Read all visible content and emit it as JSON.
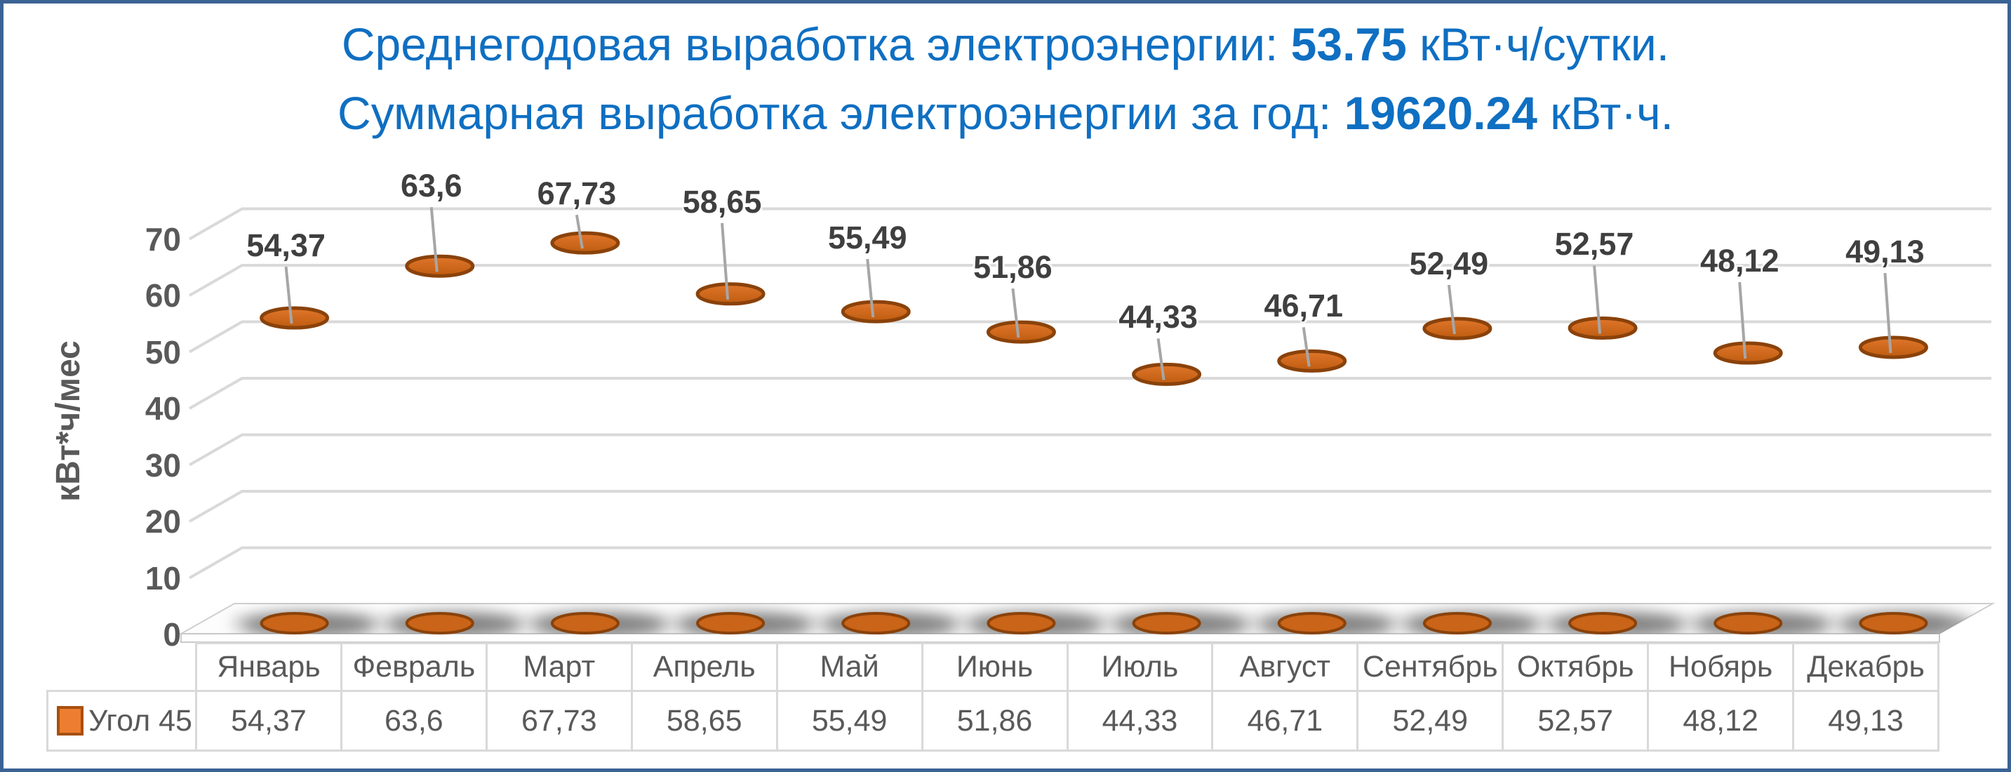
{
  "title": {
    "line1_prefix": "Среднегодовая выработка электроэнергии: ",
    "line1_value": "53.75",
    "line1_suffix": " кВт·ч/сутки.",
    "line2_prefix": "Суммарная выработка электроэнергии за год: ",
    "line2_value": "19620.24",
    "line2_suffix": " кВт·ч."
  },
  "chart_data": {
    "type": "bar",
    "subtype": "3d-cylinder",
    "categories": [
      "Январь",
      "Февраль",
      "Март",
      "Апрель",
      "Май",
      "Июнь",
      "Июль",
      "Август",
      "Сентябрь",
      "Октябрь",
      "Нобярь",
      "Декабрь"
    ],
    "series": [
      {
        "name": "Угол 45",
        "values": [
          54.37,
          63.6,
          67.73,
          58.65,
          55.49,
          51.86,
          44.33,
          46.71,
          52.49,
          52.57,
          48.12,
          49.13
        ]
      }
    ],
    "value_labels": [
      "54,37",
      "63,6",
      "67,73",
      "58,65",
      "55,49",
      "51,86",
      "44,33",
      "46,71",
      "52,49",
      "52,57",
      "48,12",
      "49,13"
    ],
    "table_values": [
      "54,37",
      "63,6",
      "67,73",
      "58,65",
      "55,49",
      "51,86",
      "44,33",
      "46,71",
      "52,49",
      "52,57",
      "48,12",
      "49,13"
    ],
    "ylabel": "кВт*ч/мес",
    "yticks": [
      "0",
      "10",
      "20",
      "30",
      "40",
      "50",
      "60",
      "70"
    ],
    "ylim": [
      0,
      70
    ],
    "grid": true,
    "legend_position": "table-row-left",
    "data_table": true
  },
  "colors": {
    "frame_border": "#3A6394",
    "title_text": "#0F6FC2",
    "axis_text": "#595959",
    "data_label_text": "#3F3F3F",
    "gridline": "#D9D9D9",
    "table_border": "#D9D9D9",
    "bar_fill": "#ED7D31",
    "bar_dark_edge": "#8F470B",
    "bar_rim": "#8A420A",
    "leader_line": "#A6A6A6"
  }
}
